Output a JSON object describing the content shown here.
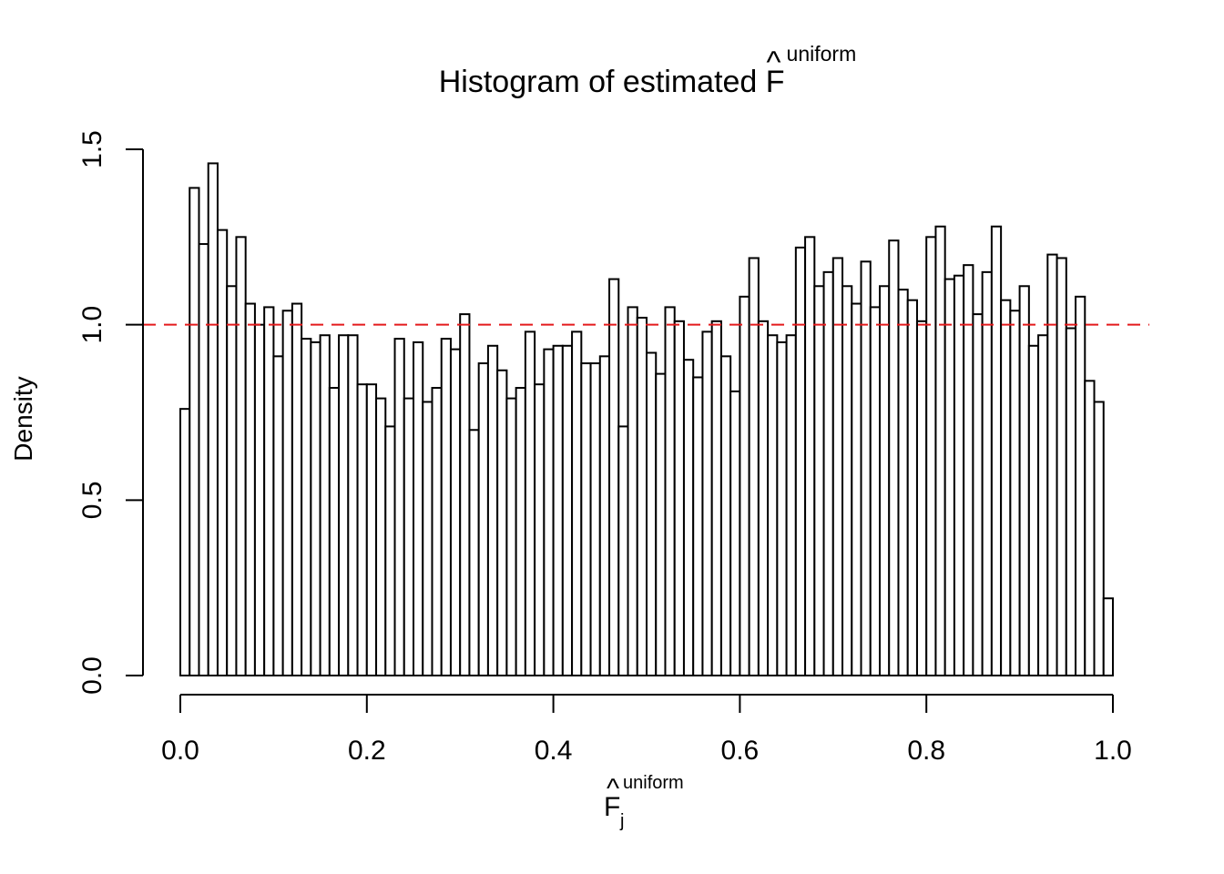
{
  "chart_data": {
    "type": "bar",
    "title": "Histogram of estimated F",
    "title_sup": "uniform",
    "xlabel": "F",
    "xlabel_sub": "j",
    "xlabel_sup": "uniform",
    "ylabel": "Density",
    "xlim": [
      0,
      1
    ],
    "ylim": [
      0,
      1.5
    ],
    "xticks": [
      "0.0",
      "0.2",
      "0.4",
      "0.6",
      "0.8",
      "1.0"
    ],
    "yticks": [
      "0.0",
      "0.5",
      "1.0",
      "1.5"
    ],
    "bin_width": 0.01,
    "reference_line": {
      "y": 1.0,
      "style": "dashed",
      "color": "#e41a1c"
    },
    "bar_fill": "#ffffff",
    "bar_stroke": "#000000",
    "grid": false,
    "values": [
      0.76,
      1.39,
      1.23,
      1.46,
      1.27,
      1.11,
      1.25,
      1.06,
      1.0,
      1.05,
      0.91,
      1.04,
      1.06,
      0.96,
      0.95,
      0.97,
      0.82,
      0.97,
      0.97,
      0.83,
      0.83,
      0.79,
      0.71,
      0.96,
      0.79,
      0.95,
      0.78,
      0.82,
      0.96,
      0.93,
      1.03,
      0.7,
      0.89,
      0.94,
      0.87,
      0.79,
      0.82,
      0.98,
      0.83,
      0.93,
      0.94,
      0.94,
      0.98,
      0.89,
      0.89,
      0.91,
      1.13,
      0.71,
      1.05,
      1.02,
      0.92,
      0.86,
      1.05,
      1.01,
      0.9,
      0.85,
      0.98,
      1.01,
      0.91,
      0.81,
      1.08,
      1.19,
      1.01,
      0.97,
      0.95,
      0.97,
      1.22,
      1.25,
      1.11,
      1.15,
      1.19,
      1.11,
      1.06,
      1.18,
      1.05,
      1.11,
      1.24,
      1.1,
      1.07,
      1.01,
      1.25,
      1.28,
      1.13,
      1.14,
      1.17,
      1.03,
      1.15,
      1.28,
      1.07,
      1.04,
      1.11,
      0.94,
      0.97,
      1.2,
      1.19,
      0.99,
      1.08,
      0.84,
      0.78,
      0.22
    ]
  }
}
